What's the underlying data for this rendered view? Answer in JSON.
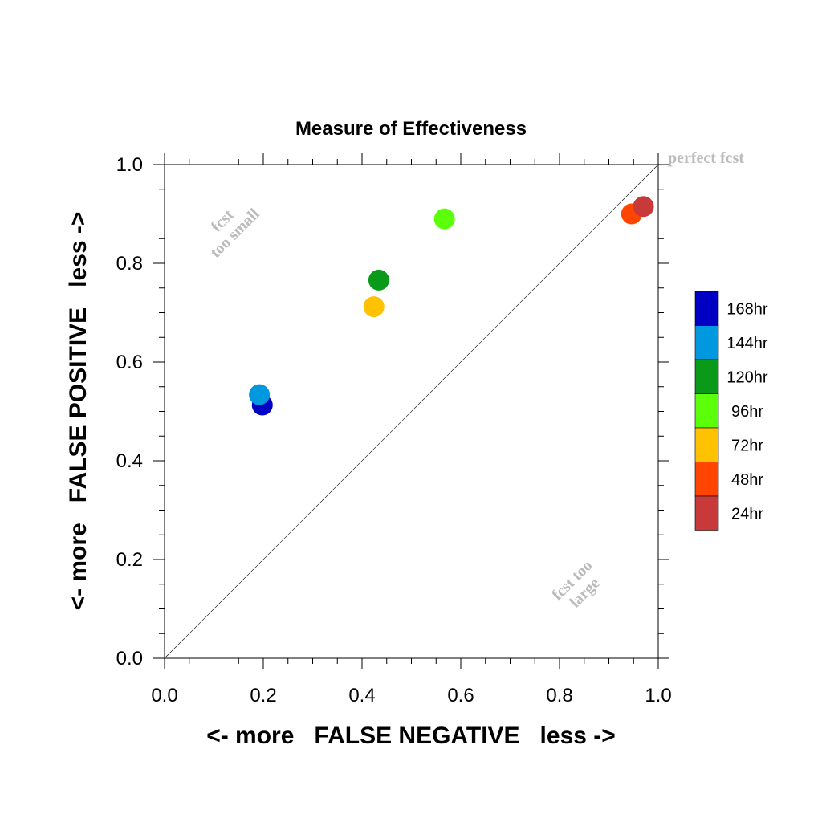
{
  "chart_data": {
    "type": "scatter",
    "title": "Measure of Effectiveness",
    "xlabel": "<- more   FALSE NEGATIVE   less ->",
    "ylabel": "<- more   FALSE POSITIVE   less ->",
    "xlim": [
      0.0,
      1.0
    ],
    "ylim": [
      0.0,
      1.0
    ],
    "xticks": [
      "0.0",
      "0.2",
      "0.4",
      "0.6",
      "0.8",
      "1.0"
    ],
    "yticks": [
      "0.0",
      "0.2",
      "0.4",
      "0.6",
      "0.8",
      "1.0"
    ],
    "grid": false,
    "legend_position": "right",
    "reference_line": "diagonal",
    "annotations": {
      "perfect": "perfect fcst",
      "small_line1": "fcst",
      "small_line2": "too small",
      "large_line1": "fcst too",
      "large_line2": "large"
    },
    "series": [
      {
        "name": "168hr",
        "color": "#0000c4",
        "x": 0.198,
        "y": 0.513
      },
      {
        "name": "144hr",
        "color": "#0099e0",
        "x": 0.192,
        "y": 0.534
      },
      {
        "name": "120hr",
        "color": "#0a9a1a",
        "x": 0.434,
        "y": 0.766
      },
      {
        "name": "96hr",
        "color": "#5cff0a",
        "x": 0.567,
        "y": 0.89
      },
      {
        "name": "72hr",
        "color": "#ffc200",
        "x": 0.424,
        "y": 0.712
      },
      {
        "name": "48hr",
        "color": "#ff4500",
        "x": 0.946,
        "y": 0.9
      },
      {
        "name": "24hr",
        "color": "#c83a3a",
        "x": 0.97,
        "y": 0.915
      }
    ],
    "legend_order": [
      "168hr",
      "144hr",
      "120hr",
      "96hr",
      "72hr",
      "48hr",
      "24hr"
    ]
  }
}
